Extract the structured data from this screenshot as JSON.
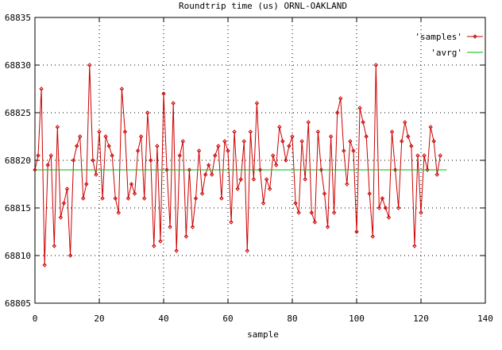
{
  "chart_data": {
    "type": "line",
    "title": "Roundtrip time (us) ORNL-OAKLAND",
    "xlabel": "sample",
    "ylabel": "",
    "xlim": [
      0,
      140
    ],
    "ylim": [
      68805,
      68835
    ],
    "xticks": [
      0,
      20,
      40,
      60,
      80,
      100,
      120,
      140
    ],
    "yticks": [
      68805,
      68810,
      68815,
      68820,
      68825,
      68830,
      68835
    ],
    "grid": true,
    "legend_position": "top-right",
    "series": [
      {
        "name": "'samples'",
        "color": "#cc0000",
        "marker": "diamond",
        "x": [
          0,
          1,
          2,
          3,
          4,
          5,
          6,
          7,
          8,
          9,
          10,
          11,
          12,
          13,
          14,
          15,
          16,
          17,
          18,
          19,
          20,
          21,
          22,
          23,
          24,
          25,
          26,
          27,
          28,
          29,
          30,
          31,
          32,
          33,
          34,
          35,
          36,
          37,
          38,
          39,
          40,
          41,
          42,
          43,
          44,
          45,
          46,
          47,
          48,
          49,
          50,
          51,
          52,
          53,
          54,
          55,
          56,
          57,
          58,
          59,
          60,
          61,
          62,
          63,
          64,
          65,
          66,
          67,
          68,
          69,
          70,
          71,
          72,
          73,
          74,
          75,
          76,
          77,
          78,
          79,
          80,
          81,
          82,
          83,
          84,
          85,
          86,
          87,
          88,
          89,
          90,
          91,
          92,
          93,
          94,
          95,
          96,
          97,
          98,
          99,
          100,
          101,
          102,
          103,
          104,
          105,
          106,
          107,
          108,
          109,
          110,
          111,
          112,
          113,
          114,
          115,
          116,
          117,
          118,
          119,
          120,
          121,
          122,
          123,
          124,
          125,
          126
        ],
        "values": [
          68819.0,
          68820.5,
          68827.5,
          68809.0,
          68819.5,
          68820.5,
          68811.0,
          68823.5,
          68814.0,
          68815.5,
          68817.0,
          68810.0,
          68820.0,
          68821.5,
          68822.5,
          68816.0,
          68817.5,
          68830.0,
          68820.0,
          68818.5,
          68823.0,
          68816.0,
          68822.5,
          68821.5,
          68820.5,
          68816.0,
          68814.5,
          68827.5,
          68823.0,
          68816.0,
          68817.5,
          68816.5,
          68821.0,
          68822.5,
          68816.0,
          68825.0,
          68820.0,
          68811.0,
          68821.5,
          68811.5,
          68827.0,
          68819.0,
          68813.0,
          68826.0,
          68810.5,
          68820.5,
          68822.0,
          68812.0,
          68819.0,
          68813.0,
          68816.0,
          68821.0,
          68816.5,
          68818.5,
          68819.5,
          68818.5,
          68820.5,
          68821.5,
          68816.0,
          68822.0,
          68821.0,
          68813.5,
          68823.0,
          68817.0,
          68818.0,
          68822.0,
          68810.5,
          68823.0,
          68818.0,
          68826.0,
          68819.0,
          68815.5,
          68818.0,
          68817.0,
          68820.5,
          68819.5,
          68823.5,
          68822.0,
          68820.0,
          68821.5,
          68822.5,
          68815.5,
          68814.5,
          68822.0,
          68818.0,
          68824.0,
          68814.5,
          68813.5,
          68823.0,
          68819.0,
          68816.5,
          68813.0,
          68822.5,
          68814.5,
          68825.0,
          68826.5,
          68821.0,
          68817.5,
          68822.0,
          68821.0,
          68812.5,
          68825.5,
          68824.0,
          68822.5,
          68816.5,
          68812.0,
          68830.0,
          68815.0,
          68816.0,
          68815.0,
          68814.0,
          68823.0,
          68819.0,
          68815.0,
          68822.0,
          68824.0,
          68822.5,
          68821.5,
          68811.0,
          68820.5,
          68814.5,
          68820.5,
          68819.0,
          68823.5,
          68822.0,
          68818.5,
          68820.5
        ]
      },
      {
        "name": "'avrg'",
        "color": "#00bb00",
        "marker": "none",
        "x": [
          0,
          128
        ],
        "values": [
          68819,
          68819
        ]
      }
    ]
  }
}
